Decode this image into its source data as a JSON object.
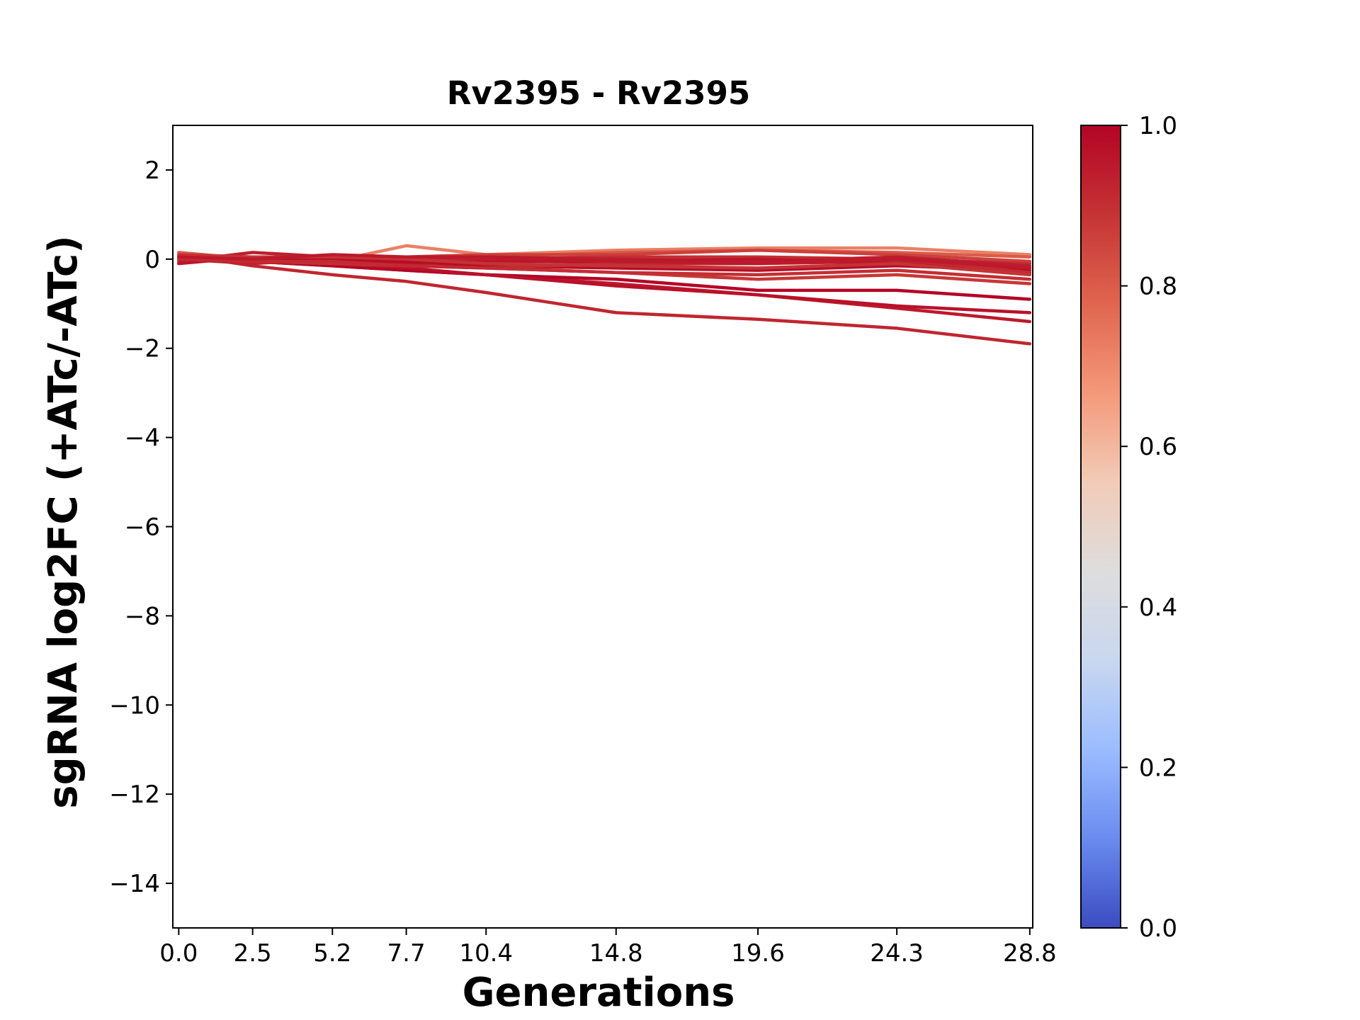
{
  "chart_data": {
    "type": "line",
    "title": "Rv2395 - Rv2395",
    "xlabel": "Generations",
    "ylabel": "sgRNA log2FC (+ATc/-ATc)",
    "x": [
      0.0,
      2.5,
      5.2,
      7.7,
      10.4,
      14.8,
      19.6,
      24.3,
      28.8
    ],
    "x_tick_labels": [
      "0.0",
      "2.5",
      "5.2",
      "7.7",
      "10.4",
      "14.8",
      "19.6",
      "24.3",
      "28.8"
    ],
    "xlim": [
      -0.2,
      28.9
    ],
    "ylim": [
      -15,
      3
    ],
    "y_ticks": [
      2,
      0,
      -2,
      -4,
      -6,
      -8,
      -10,
      -12,
      -14
    ],
    "y_tick_labels": [
      "2",
      "0",
      "−2",
      "−4",
      "−6",
      "−8",
      "−10",
      "−12",
      "−14"
    ],
    "grid": false,
    "colorbar": {
      "colormap": "coolwarm",
      "range": [
        0.0,
        1.0
      ],
      "tick_labels": [
        "0.0",
        "0.2",
        "0.4",
        "0.6",
        "0.8",
        "1.0"
      ],
      "stops": [
        "#3b4cc0",
        "#6a8bef",
        "#9bbcff",
        "#c9d7f0",
        "#dddddd",
        "#f2cbb7",
        "#f4987a",
        "#e0654f",
        "#c53334",
        "#b40426"
      ]
    },
    "series": [
      {
        "values": [
          0.1,
          -0.15,
          -0.35,
          -0.5,
          -0.75,
          -1.2,
          -1.35,
          -1.55,
          -1.9
        ],
        "color_value": 0.92
      },
      {
        "values": [
          0.05,
          -0.05,
          -0.15,
          -0.25,
          -0.35,
          -0.55,
          -0.8,
          -1.1,
          -1.4
        ],
        "color_value": 0.95
      },
      {
        "values": [
          0.0,
          -0.05,
          -0.15,
          -0.25,
          -0.35,
          -0.45,
          -0.7,
          -0.7,
          -0.9
        ],
        "color_value": 1.0
      },
      {
        "values": [
          0.05,
          -0.05,
          -0.1,
          -0.2,
          -0.35,
          -0.6,
          -0.8,
          -1.05,
          -1.2
        ],
        "color_value": 0.97
      },
      {
        "values": [
          0.05,
          0.0,
          -0.05,
          -0.1,
          -0.2,
          -0.3,
          -0.45,
          -0.35,
          -0.55
        ],
        "color_value": 0.88
      },
      {
        "values": [
          0.0,
          -0.05,
          -0.1,
          -0.15,
          -0.2,
          -0.3,
          -0.35,
          -0.25,
          -0.45
        ],
        "color_value": 0.9
      },
      {
        "values": [
          0.1,
          0.0,
          -0.05,
          0.3,
          0.1,
          0.2,
          0.25,
          0.25,
          0.1
        ],
        "color_value": 0.72
      },
      {
        "values": [
          0.15,
          0.0,
          0.05,
          0.0,
          0.05,
          0.15,
          0.2,
          0.15,
          0.05
        ],
        "color_value": 0.8
      },
      {
        "values": [
          0.0,
          0.0,
          0.0,
          0.05,
          0.1,
          0.1,
          0.2,
          0.1,
          -0.05
        ],
        "color_value": 0.86
      },
      {
        "values": [
          0.05,
          0.05,
          0.05,
          0.0,
          0.0,
          0.05,
          0.05,
          0.0,
          -0.1
        ],
        "color_value": 0.9
      },
      {
        "values": [
          -0.05,
          0.15,
          0.05,
          0.0,
          0.05,
          0.0,
          -0.05,
          0.05,
          -0.15
        ],
        "color_value": 0.94
      },
      {
        "values": [
          0.0,
          -0.1,
          0.0,
          -0.05,
          0.0,
          -0.1,
          -0.1,
          -0.05,
          -0.2
        ],
        "color_value": 0.93
      },
      {
        "values": [
          -0.1,
          0.05,
          -0.05,
          -0.1,
          -0.05,
          -0.05,
          0.0,
          -0.1,
          -0.3
        ],
        "color_value": 0.96
      },
      {
        "values": [
          0.05,
          0.0,
          0.0,
          -0.05,
          -0.15,
          -0.2,
          -0.25,
          -0.15,
          -0.25
        ],
        "color_value": 0.98
      },
      {
        "values": [
          0.0,
          -0.05,
          -0.05,
          -0.15,
          -0.2,
          -0.1,
          -0.1,
          0.0,
          -0.3
        ],
        "color_value": 0.91
      },
      {
        "values": [
          0.1,
          0.05,
          0.05,
          0.0,
          -0.1,
          -0.15,
          -0.2,
          -0.1,
          -0.35
        ],
        "color_value": 0.89
      },
      {
        "values": [
          0.05,
          0.0,
          0.1,
          0.05,
          0.05,
          -0.05,
          -0.1,
          0.0,
          -0.2
        ],
        "color_value": 0.95
      }
    ]
  }
}
